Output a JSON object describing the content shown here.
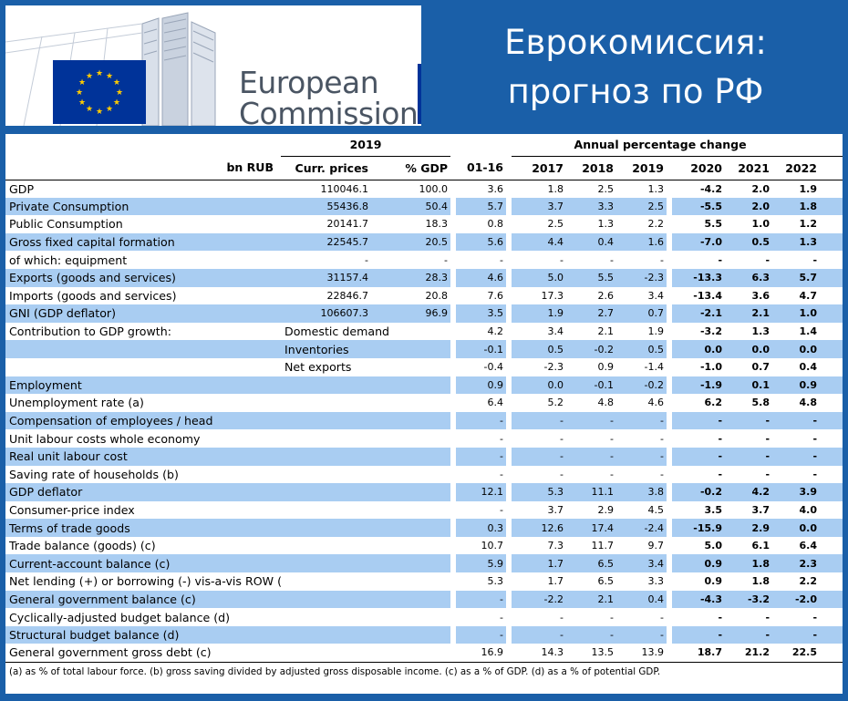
{
  "header": {
    "logo_line1": "European",
    "logo_line2": "Commission",
    "title_line1": "Еврокомиссия:",
    "title_line2": "прогноз по РФ"
  },
  "colors": {
    "background": "#1a5fa8",
    "shade": "#a9cdf2",
    "flag": "#003399",
    "star": "#ffcc00"
  },
  "table": {
    "head_year": "2019",
    "head_change": "Annual percentage change",
    "columns": {
      "unit": "bn RUB",
      "curr": "Curr. prices",
      "pgdp": "% GDP",
      "y1": "01-16",
      "y2": "2017",
      "y3": "2018",
      "y4": "2019",
      "y5": "2020",
      "y6": "2021",
      "y7": "2022"
    },
    "rows": [
      {
        "label": "GDP",
        "sub": "",
        "curr": "110046.1",
        "pgdp": "100.0",
        "v": [
          "3.6",
          "1.8",
          "2.5",
          "1.3",
          "-4.2",
          "2.0",
          "1.9"
        ],
        "shade": false
      },
      {
        "label": "Private Consumption",
        "sub": "",
        "curr": "55436.8",
        "pgdp": "50.4",
        "v": [
          "5.7",
          "3.7",
          "3.3",
          "2.5",
          "-5.5",
          "2.0",
          "1.8"
        ],
        "shade": true
      },
      {
        "label": "Public Consumption",
        "sub": "",
        "curr": "20141.7",
        "pgdp": "18.3",
        "v": [
          "0.8",
          "2.5",
          "1.3",
          "2.2",
          "5.5",
          "1.0",
          "1.2"
        ],
        "shade": false
      },
      {
        "label": "Gross fixed capital formation",
        "sub": "",
        "curr": "22545.7",
        "pgdp": "20.5",
        "v": [
          "5.6",
          "4.4",
          "0.4",
          "1.6",
          "-7.0",
          "0.5",
          "1.3"
        ],
        "shade": true
      },
      {
        "label": "of which: equipment",
        "sub": "",
        "curr": "-",
        "pgdp": "-",
        "v": [
          "-",
          "-",
          "-",
          "-",
          "-",
          "-",
          "-"
        ],
        "shade": false
      },
      {
        "label": "Exports (goods and services)",
        "sub": "",
        "curr": "31157.4",
        "pgdp": "28.3",
        "v": [
          "4.6",
          "5.0",
          "5.5",
          "-2.3",
          "-13.3",
          "6.3",
          "5.7"
        ],
        "shade": true
      },
      {
        "label": "Imports (goods and services)",
        "sub": "",
        "curr": "22846.7",
        "pgdp": "20.8",
        "v": [
          "7.6",
          "17.3",
          "2.6",
          "3.4",
          "-13.4",
          "3.6",
          "4.7"
        ],
        "shade": false
      },
      {
        "label": "GNI (GDP deflator)",
        "sub": "",
        "curr": "106607.3",
        "pgdp": "96.9",
        "v": [
          "3.5",
          "1.9",
          "2.7",
          "0.7",
          "-2.1",
          "2.1",
          "1.0"
        ],
        "shade": true
      },
      {
        "label": "Contribution to GDP growth:",
        "sub": "Domestic demand",
        "curr": "",
        "pgdp": "",
        "v": [
          "4.2",
          "3.4",
          "2.1",
          "1.9",
          "-3.2",
          "1.3",
          "1.4"
        ],
        "shade": false
      },
      {
        "label": "",
        "sub": "Inventories",
        "curr": "",
        "pgdp": "",
        "v": [
          "-0.1",
          "0.5",
          "-0.2",
          "0.5",
          "0.0",
          "0.0",
          "0.0"
        ],
        "shade": true
      },
      {
        "label": "",
        "sub": "Net exports",
        "curr": "",
        "pgdp": "",
        "v": [
          "-0.4",
          "-2.3",
          "0.9",
          "-1.4",
          "-1.0",
          "0.7",
          "0.4"
        ],
        "shade": false
      },
      {
        "label": "Employment",
        "sub": "",
        "curr": "",
        "pgdp": "",
        "v": [
          "0.9",
          "0.0",
          "-0.1",
          "-0.2",
          "-1.9",
          "0.1",
          "0.9"
        ],
        "shade": true
      },
      {
        "label": "Unemployment rate (a)",
        "sub": "",
        "curr": "",
        "pgdp": "",
        "v": [
          "6.4",
          "5.2",
          "4.8",
          "4.6",
          "6.2",
          "5.8",
          "4.8"
        ],
        "shade": false
      },
      {
        "label": "Compensation of employees / head",
        "sub": "",
        "curr": "",
        "pgdp": "",
        "v": [
          "-",
          "-",
          "-",
          "-",
          "-",
          "-",
          "-"
        ],
        "shade": true
      },
      {
        "label": "Unit labour costs whole economy",
        "sub": "",
        "curr": "",
        "pgdp": "",
        "v": [
          "-",
          "-",
          "-",
          "-",
          "-",
          "-",
          "-"
        ],
        "shade": false
      },
      {
        "label": "Real unit labour cost",
        "sub": "",
        "curr": "",
        "pgdp": "",
        "v": [
          "-",
          "-",
          "-",
          "-",
          "-",
          "-",
          "-"
        ],
        "shade": true
      },
      {
        "label": "Saving rate of households (b)",
        "sub": "",
        "curr": "",
        "pgdp": "",
        "v": [
          "-",
          "-",
          "-",
          "-",
          "-",
          "-",
          "-"
        ],
        "shade": false
      },
      {
        "label": "GDP deflator",
        "sub": "",
        "curr": "",
        "pgdp": "",
        "v": [
          "12.1",
          "5.3",
          "11.1",
          "3.8",
          "-0.2",
          "4.2",
          "3.9"
        ],
        "shade": true
      },
      {
        "label": "Consumer-price index",
        "sub": "",
        "curr": "",
        "pgdp": "",
        "v": [
          "-",
          "3.7",
          "2.9",
          "4.5",
          "3.5",
          "3.7",
          "4.0"
        ],
        "shade": false
      },
      {
        "label": "Terms of trade goods",
        "sub": "",
        "curr": "",
        "pgdp": "",
        "v": [
          "0.3",
          "12.6",
          "17.4",
          "-2.4",
          "-15.9",
          "2.9",
          "0.0"
        ],
        "shade": true
      },
      {
        "label": "Trade balance (goods) (c)",
        "sub": "",
        "curr": "",
        "pgdp": "",
        "v": [
          "10.7",
          "7.3",
          "11.7",
          "9.7",
          "5.0",
          "6.1",
          "6.4"
        ],
        "shade": false
      },
      {
        "label": "Current-account balance (c)",
        "sub": "",
        "curr": "",
        "pgdp": "",
        "v": [
          "5.9",
          "1.7",
          "6.5",
          "3.4",
          "0.9",
          "1.8",
          "2.3"
        ],
        "shade": true
      },
      {
        "label": "Net lending (+) or borrowing (-) vis-a-vis ROW (c)",
        "sub": "",
        "curr": "",
        "pgdp": "",
        "v": [
          "5.3",
          "1.7",
          "6.5",
          "3.3",
          "0.9",
          "1.8",
          "2.2"
        ],
        "shade": false
      },
      {
        "label": "General government balance (c)",
        "sub": "",
        "curr": "",
        "pgdp": "",
        "v": [
          "-",
          "-2.2",
          "2.1",
          "0.4",
          "-4.3",
          "-3.2",
          "-2.0"
        ],
        "shade": true
      },
      {
        "label": "Cyclically-adjusted budget balance (d)",
        "sub": "",
        "curr": "",
        "pgdp": "",
        "v": [
          "-",
          "-",
          "-",
          "-",
          "-",
          "-",
          "-"
        ],
        "shade": false
      },
      {
        "label": "Structural budget balance (d)",
        "sub": "",
        "curr": "",
        "pgdp": "",
        "v": [
          "-",
          "-",
          "-",
          "-",
          "-",
          "-",
          "-"
        ],
        "shade": true
      },
      {
        "label": "General government gross debt (c)",
        "sub": "",
        "curr": "",
        "pgdp": "",
        "v": [
          "16.9",
          "14.3",
          "13.5",
          "13.9",
          "18.7",
          "21.2",
          "22.5"
        ],
        "shade": false
      }
    ],
    "footnote": "(a) as % of total labour force. (b) gross saving divided by adjusted gross disposable income. (c) as a % of  GDP. (d) as a % of  potential GDP."
  }
}
